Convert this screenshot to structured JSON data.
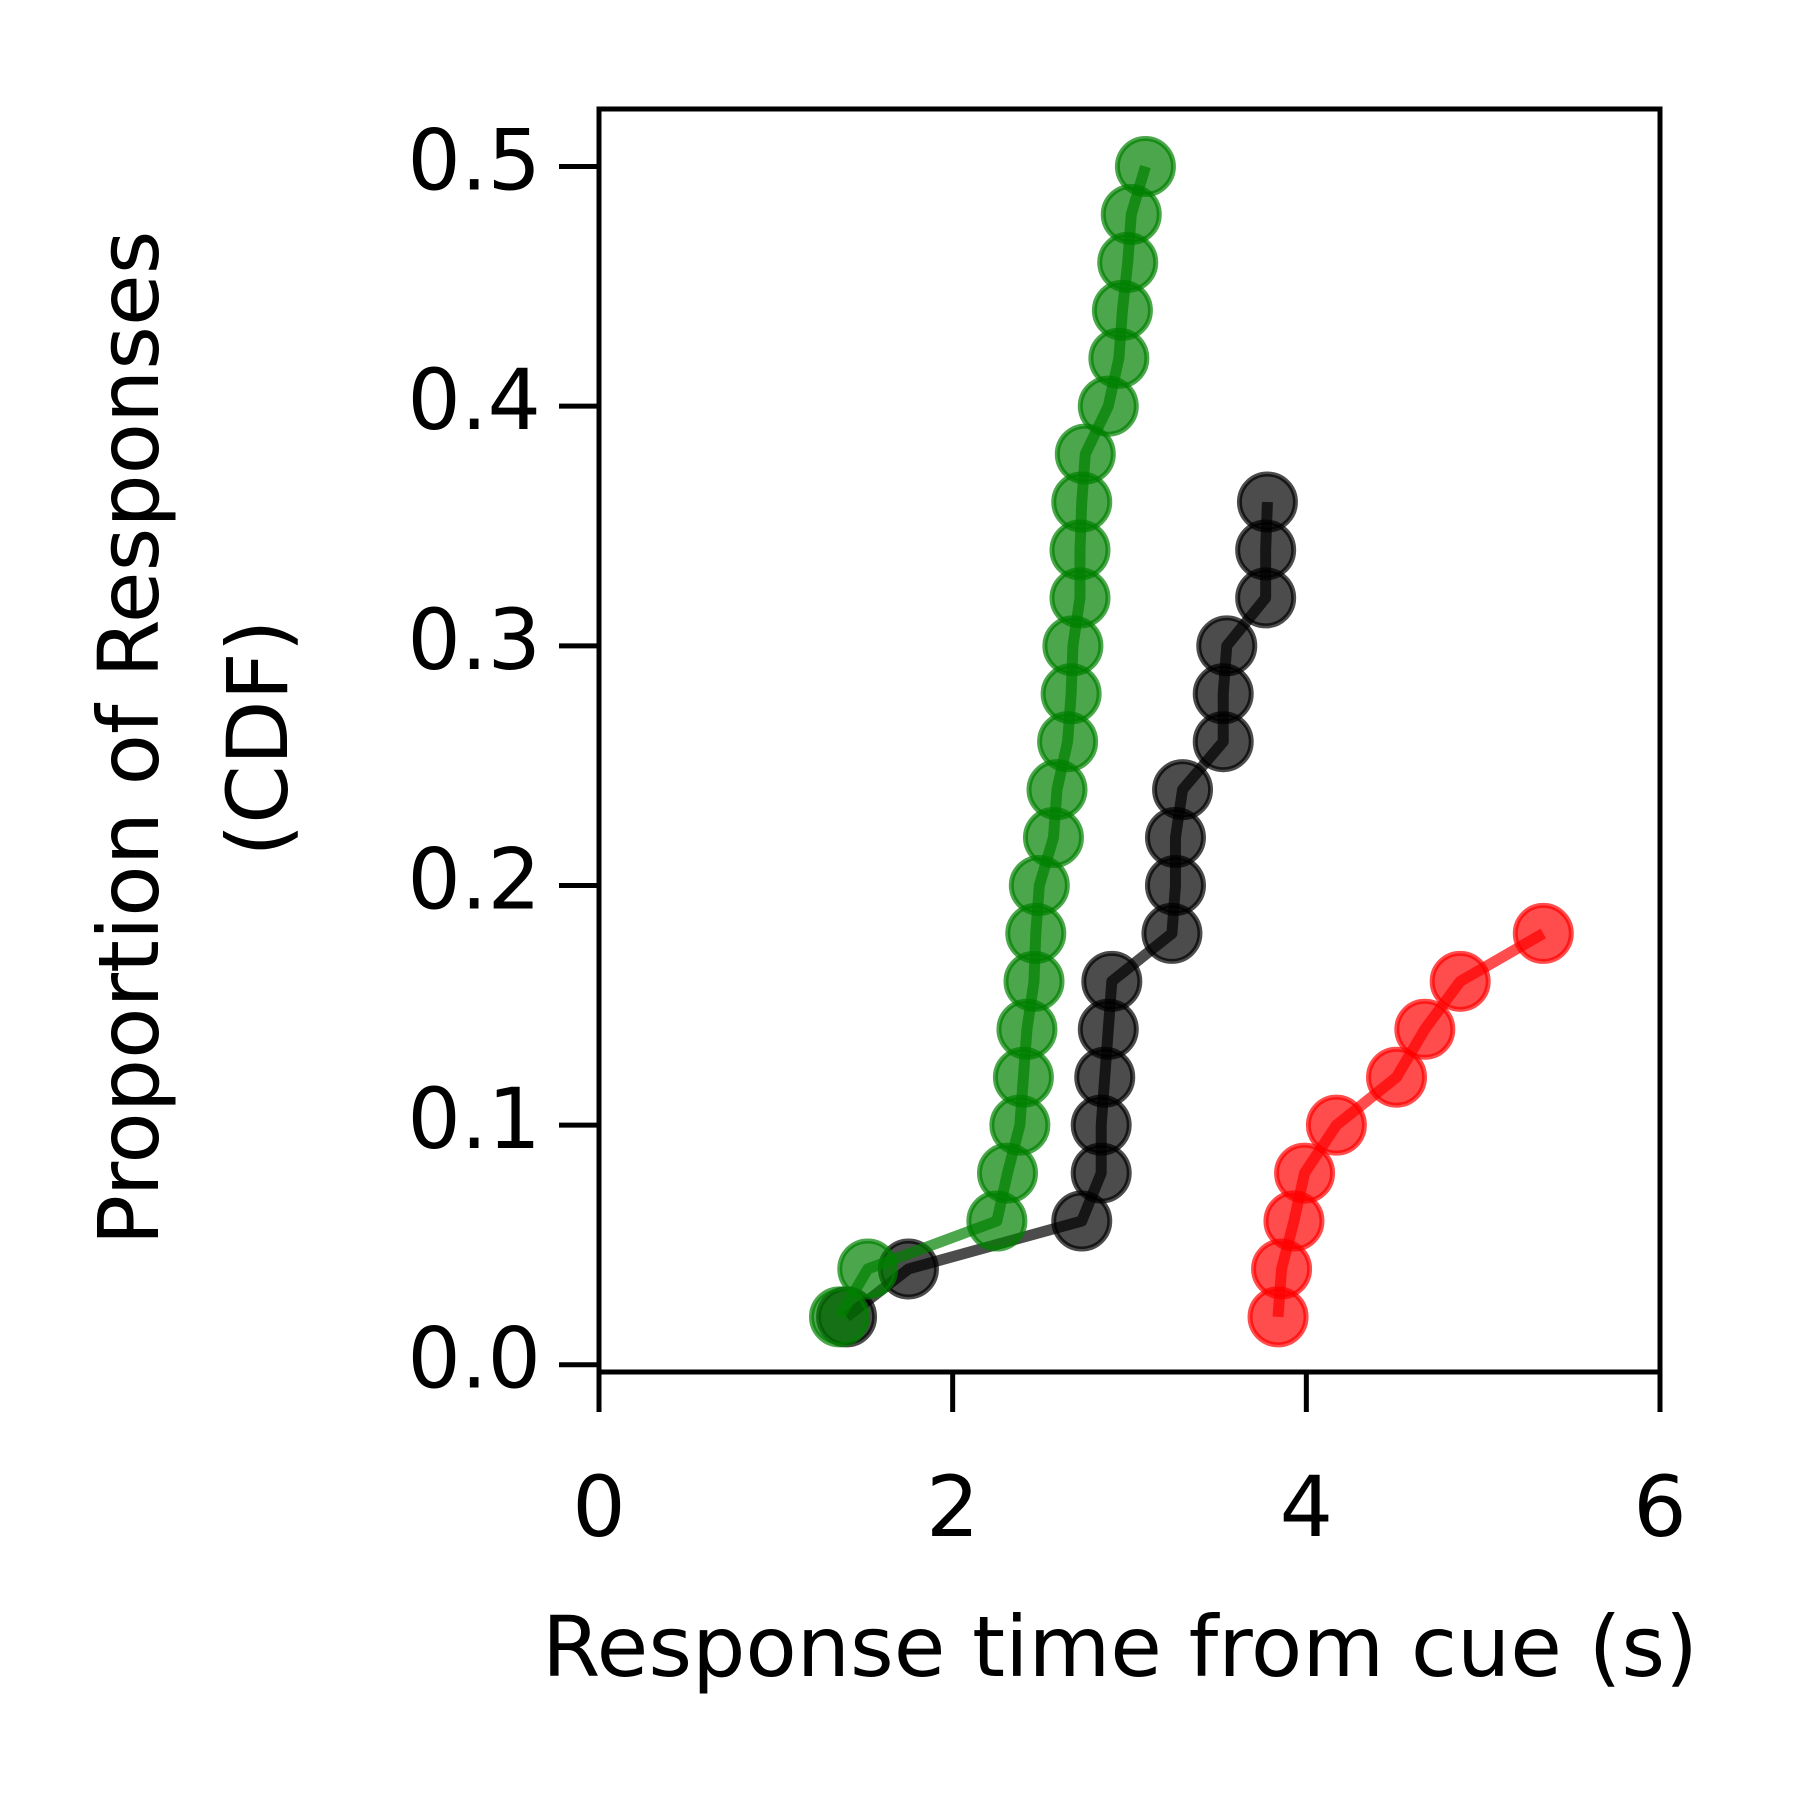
{
  "chart_data": {
    "type": "line",
    "xlabel": "Response time from cue (s)",
    "ylabel": [
      "Proportion of Responses",
      "(CDF)"
    ],
    "xlim": [
      0,
      6
    ],
    "xticks": [
      0,
      2,
      4,
      6
    ],
    "ylim": [
      -0.003,
      0.524
    ],
    "yticks": [
      {
        "value": 0,
        "label": "0.0"
      },
      0.1,
      0.2,
      0.3,
      0.4,
      0.5
    ],
    "series": [
      {
        "color": "#000000",
        "x": [
          1.4,
          1.75,
          2.73,
          2.84,
          2.84,
          2.86,
          2.88,
          2.9,
          3.24,
          3.26,
          3.26,
          3.3,
          3.53,
          3.53,
          3.55,
          3.77,
          3.77,
          3.78
        ],
        "values": [
          0.02,
          0.04,
          0.06,
          0.08,
          0.1,
          0.12,
          0.14,
          0.16,
          0.18,
          0.2,
          0.22,
          0.24,
          0.26,
          0.28,
          0.3,
          0.32,
          0.34,
          0.36
        ]
      },
      {
        "color": "#ff0000",
        "x": [
          3.84,
          3.86,
          3.93,
          3.99,
          4.17,
          4.51,
          4.67,
          4.87,
          5.34
        ],
        "values": [
          0.02,
          0.04,
          0.06,
          0.08,
          0.1,
          0.12,
          0.14,
          0.16,
          0.18
        ]
      },
      {
        "color": "#008000",
        "x": [
          1.36,
          1.52,
          2.25,
          2.31,
          2.38,
          2.4,
          2.42,
          2.46,
          2.47,
          2.49,
          2.57,
          2.59,
          2.65,
          2.67,
          2.68,
          2.72,
          2.72,
          2.73,
          2.75,
          2.88,
          2.94,
          2.96,
          2.99,
          3.01,
          3.09
        ],
        "values": [
          0.02,
          0.04,
          0.06,
          0.08,
          0.1,
          0.12,
          0.14,
          0.16,
          0.18,
          0.2,
          0.22,
          0.24,
          0.26,
          0.28,
          0.3,
          0.32,
          0.34,
          0.36,
          0.38,
          0.4,
          0.42,
          0.44,
          0.46,
          0.48,
          0.5
        ]
      }
    ]
  }
}
